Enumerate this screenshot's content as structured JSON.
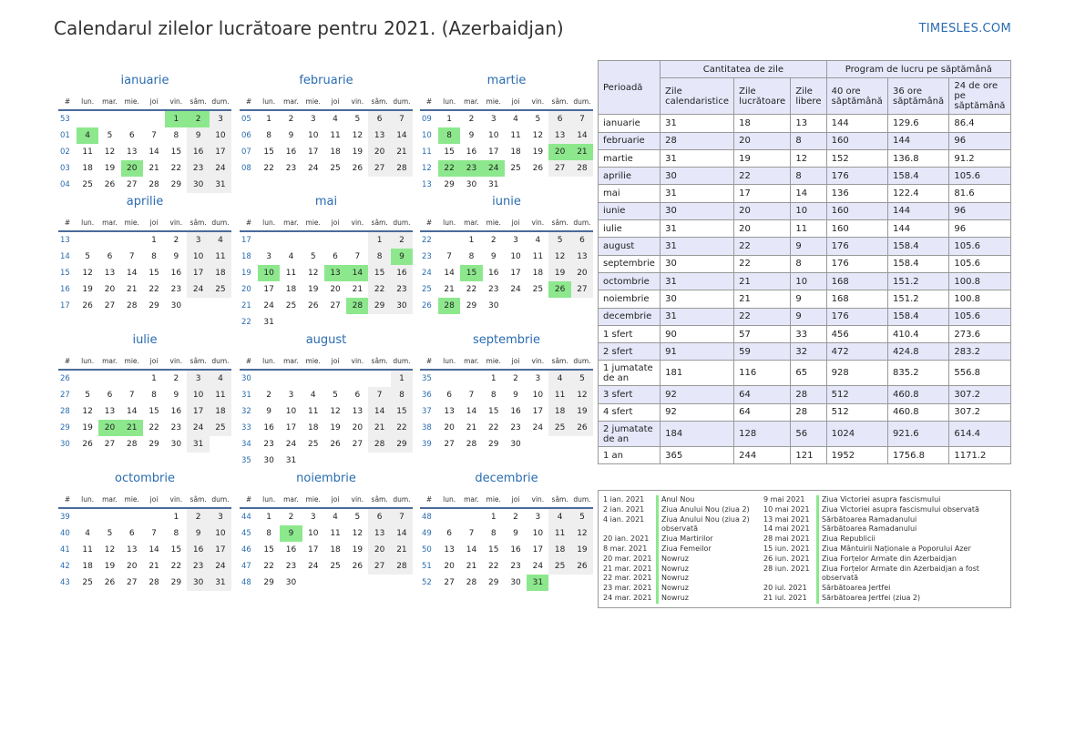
{
  "header": {
    "title": "Calendarul zilelor lucrătoare pentru 2021. (Azerbaidjan)",
    "brand": "TIMESLES.COM"
  },
  "day_headers": [
    "#",
    "lun.",
    "mar.",
    "mie.",
    "joi",
    "vin.",
    "sâm.",
    "dum."
  ],
  "months": [
    {
      "name": "ianuarie",
      "weeks": [
        "53",
        "01",
        "02",
        "03",
        "04"
      ],
      "offset": 4,
      "days": 31,
      "holidays": [
        1,
        2,
        4,
        20
      ]
    },
    {
      "name": "februarie",
      "weeks": [
        "05",
        "06",
        "07",
        "08"
      ],
      "offset": 0,
      "days": 28,
      "holidays": []
    },
    {
      "name": "martie",
      "weeks": [
        "09",
        "10",
        "11",
        "12",
        "13"
      ],
      "offset": 0,
      "days": 31,
      "holidays": [
        8,
        20,
        21,
        22,
        23,
        24
      ]
    },
    {
      "name": "aprilie",
      "weeks": [
        "13",
        "14",
        "15",
        "16",
        "17"
      ],
      "offset": 3,
      "days": 30,
      "holidays": []
    },
    {
      "name": "mai",
      "weeks": [
        "17",
        "18",
        "19",
        "20",
        "21",
        "22"
      ],
      "offset": 5,
      "days": 31,
      "holidays": [
        9,
        10,
        13,
        14,
        28
      ]
    },
    {
      "name": "iunie",
      "weeks": [
        "22",
        "23",
        "24",
        "25",
        "26"
      ],
      "offset": 1,
      "days": 30,
      "holidays": [
        15,
        26,
        28
      ]
    },
    {
      "name": "iulie",
      "weeks": [
        "26",
        "27",
        "28",
        "29",
        "30"
      ],
      "offset": 3,
      "days": 31,
      "holidays": [
        20,
        21
      ]
    },
    {
      "name": "august",
      "weeks": [
        "30",
        "31",
        "32",
        "33",
        "34",
        "35"
      ],
      "offset": 6,
      "days": 31,
      "holidays": []
    },
    {
      "name": "septembrie",
      "weeks": [
        "35",
        "36",
        "37",
        "38",
        "39"
      ],
      "offset": 2,
      "days": 30,
      "holidays": []
    },
    {
      "name": "octombrie",
      "weeks": [
        "39",
        "40",
        "41",
        "42",
        "43"
      ],
      "offset": 4,
      "days": 31,
      "holidays": []
    },
    {
      "name": "noiembrie",
      "weeks": [
        "44",
        "45",
        "46",
        "47",
        "48"
      ],
      "offset": 0,
      "days": 30,
      "holidays": [
        9
      ]
    },
    {
      "name": "decembrie",
      "weeks": [
        "48",
        "49",
        "50",
        "51",
        "52"
      ],
      "offset": 2,
      "days": 31,
      "holidays": [
        31
      ]
    }
  ],
  "stats": {
    "period_header": "Perioadă",
    "group1": "Cantitatea de zile",
    "group2": "Program de lucru pe săptămână",
    "cols": [
      "Zile calendaristice",
      "Zile lucrătoare",
      "Zile libere",
      "40 ore săptămână",
      "36 ore săptămână",
      "24 de ore pe săptămână"
    ],
    "rows": [
      [
        "ianuarie",
        "31",
        "18",
        "13",
        "144",
        "129.6",
        "86.4"
      ],
      [
        "februarie",
        "28",
        "20",
        "8",
        "160",
        "144",
        "96"
      ],
      [
        "martie",
        "31",
        "19",
        "12",
        "152",
        "136.8",
        "91.2"
      ],
      [
        "aprilie",
        "30",
        "22",
        "8",
        "176",
        "158.4",
        "105.6"
      ],
      [
        "mai",
        "31",
        "17",
        "14",
        "136",
        "122.4",
        "81.6"
      ],
      [
        "iunie",
        "30",
        "20",
        "10",
        "160",
        "144",
        "96"
      ],
      [
        "iulie",
        "31",
        "20",
        "11",
        "160",
        "144",
        "96"
      ],
      [
        "august",
        "31",
        "22",
        "9",
        "176",
        "158.4",
        "105.6"
      ],
      [
        "septembrie",
        "30",
        "22",
        "8",
        "176",
        "158.4",
        "105.6"
      ],
      [
        "octombrie",
        "31",
        "21",
        "10",
        "168",
        "151.2",
        "100.8"
      ],
      [
        "noiembrie",
        "30",
        "21",
        "9",
        "168",
        "151.2",
        "100.8"
      ],
      [
        "decembrie",
        "31",
        "22",
        "9",
        "176",
        "158.4",
        "105.6"
      ],
      [
        "1 sfert",
        "90",
        "57",
        "33",
        "456",
        "410.4",
        "273.6"
      ],
      [
        "2 sfert",
        "91",
        "59",
        "32",
        "472",
        "424.8",
        "283.2"
      ],
      [
        "1 jumatate de an",
        "181",
        "116",
        "65",
        "928",
        "835.2",
        "556.8"
      ],
      [
        "3 sfert",
        "92",
        "64",
        "28",
        "512",
        "460.8",
        "307.2"
      ],
      [
        "4 sfert",
        "92",
        "64",
        "28",
        "512",
        "460.8",
        "307.2"
      ],
      [
        "2 jumatate de an",
        "184",
        "128",
        "56",
        "1024",
        "921.6",
        "614.4"
      ],
      [
        "1 an",
        "365",
        "244",
        "121",
        "1952",
        "1756.8",
        "1171.2"
      ]
    ]
  },
  "holidays_left": [
    [
      "1 ian. 2021",
      "Anul Nou"
    ],
    [
      "2 ian. 2021",
      "Ziua Anului Nou (ziua 2)"
    ],
    [
      "4 ian. 2021",
      "Ziua Anului Nou (ziua 2) observată"
    ],
    [
      "20 ian. 2021",
      "Ziua Martirilor"
    ],
    [
      "8 mar. 2021",
      "Ziua Femeilor"
    ],
    [
      "20 mar. 2021",
      "Nowruz"
    ],
    [
      "21 mar. 2021",
      "Nowruz"
    ],
    [
      "22 mar. 2021",
      "Nowruz"
    ],
    [
      "23 mar. 2021",
      "Nowruz"
    ],
    [
      "24 mar. 2021",
      "Nowruz"
    ]
  ],
  "holidays_right": [
    [
      "9 mai 2021",
      "Ziua Victoriei asupra fascismului"
    ],
    [
      "10 mai 2021",
      "Ziua Victoriei asupra fascismului observată"
    ],
    [
      "13 mai 2021",
      "Sărbătoarea Ramadanului"
    ],
    [
      "14 mai 2021",
      "Sărbătoarea Ramadanului"
    ],
    [
      "28 mai 2021",
      "Ziua Republicii"
    ],
    [
      "15 iun. 2021",
      "Ziua Mântuirii Naționale a Poporului Azer"
    ],
    [
      "26 iun. 2021",
      "Ziua Forțelor Armate din Azerbaidjan"
    ],
    [
      "28 iun. 2021",
      "Ziua Forțelor Armate din Azerbaidjan a fost observată"
    ],
    [
      "20 iul. 2021",
      "Sărbătoarea Jertfei"
    ],
    [
      "21 iul. 2021",
      "Sărbătoarea Jertfei (ziua 2)"
    ]
  ],
  "colors": {
    "accent": "#2a6cb0",
    "holiday": "#8de88d",
    "weekend": "#efefef",
    "table_alt": "#e6e8fa"
  }
}
